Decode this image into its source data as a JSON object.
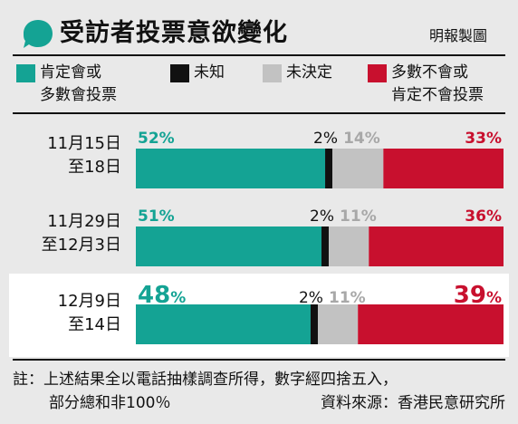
{
  "header": {
    "title": "受訪者投票意欲變化",
    "credit": "明報製圖",
    "bubble_color": "#14a394"
  },
  "colors": {
    "will_vote": "#14a394",
    "unknown": "#111111",
    "undecided": "#c2c2c2",
    "wont_vote": "#c8102e"
  },
  "legend": [
    {
      "color_key": "will_vote",
      "line1": "肯定會或",
      "line2": "多數會投票"
    },
    {
      "color_key": "unknown",
      "line1": "未知",
      "line2": ""
    },
    {
      "color_key": "undecided",
      "line1": "未決定",
      "line2": ""
    },
    {
      "color_key": "wont_vote",
      "line1": "多數不會或",
      "line2": "肯定不會投票"
    }
  ],
  "chart_data": {
    "type": "bar",
    "orientation": "horizontal",
    "stacked": true,
    "title": "受訪者投票意欲變化",
    "categories": [
      {
        "line1": "11月15日",
        "line2": "至18日"
      },
      {
        "line1": "11月29日",
        "line2": "至12月3日"
      },
      {
        "line1": "12月9日",
        "line2": "至14日"
      }
    ],
    "series": [
      {
        "name": "肯定會或多數會投票",
        "color_key": "will_vote",
        "values": [
          52,
          51,
          48
        ],
        "labels": [
          "52%",
          "51%",
          "48%"
        ]
      },
      {
        "name": "未知",
        "color_key": "unknown",
        "values": [
          2,
          2,
          2
        ],
        "labels": [
          "2%",
          "2%",
          "2%"
        ]
      },
      {
        "name": "未決定",
        "color_key": "undecided",
        "values": [
          14,
          11,
          11
        ],
        "labels": [
          "14%",
          "11%",
          "11%"
        ]
      },
      {
        "name": "多數不會或肯定不會投票",
        "color_key": "wont_vote",
        "values": [
          33,
          36,
          39
        ],
        "labels": [
          "33%",
          "36%",
          "39%"
        ]
      }
    ],
    "xlim": [
      0,
      101
    ],
    "highlight_row": 2
  },
  "footer": {
    "note_line1": "註：上述結果全以電話抽樣調查所得，數字經四捨五入，",
    "note_line2": "部分總和非100％",
    "source": "資料來源：香港民意研究所"
  }
}
